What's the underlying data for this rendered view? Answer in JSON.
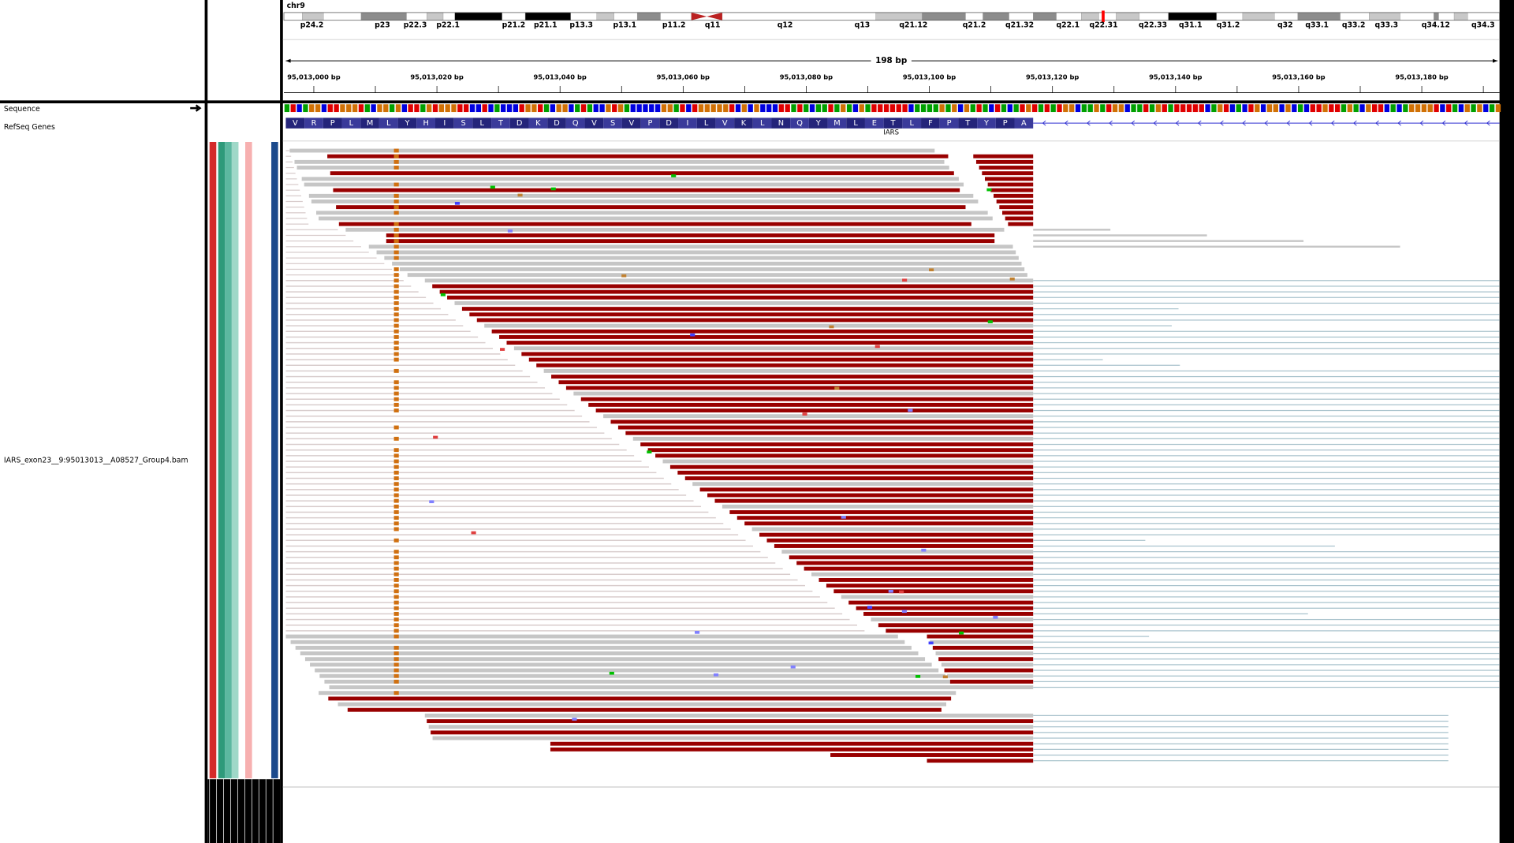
{
  "header": {
    "chromosome": "chr9",
    "span": "198 bp"
  },
  "cytobands": [
    "p24.2",
    "p23",
    "p22.3",
    "p22.1",
    "p21.2",
    "p21.1",
    "p13.3",
    "p13.1",
    "p11.2",
    "q11",
    "q12",
    "q13",
    "q21.12",
    "q21.2",
    "q21.32",
    "q22.1",
    "q22.31",
    "q22.33",
    "q31.1",
    "q31.2",
    "q32",
    "q33.1",
    "q33.2",
    "q33.3",
    "q34.12",
    "q34.3"
  ],
  "ruler_labels": [
    "95,013,000 bp",
    "95,013,020 bp",
    "95,013,040 bp",
    "95,013,060 bp",
    "95,013,080 bp",
    "95,013,100 bp",
    "95,013,120 bp",
    "95,013,140 bp",
    "95,013,160 bp",
    "95,013,180 bp"
  ],
  "tracks": {
    "sequence": "Sequence",
    "refseq": "RefSeq Genes",
    "alignment": "IARS_exon23__9:95013013__A08527_Group4.bam"
  },
  "gene": {
    "name": "IARS",
    "amino_acids": [
      "V",
      "R",
      "P",
      "L",
      "M",
      "L",
      "Y",
      "H",
      "I",
      "S",
      "L",
      "T",
      "D",
      "K",
      "D",
      "Q",
      "V",
      "S",
      "V",
      "P",
      "D",
      "I",
      "L",
      "V",
      "K",
      "L",
      "N",
      "Q",
      "Y",
      "M",
      "L",
      "E",
      "T",
      "L",
      "F",
      "P",
      "T",
      "Y",
      "P",
      "A"
    ]
  }
}
